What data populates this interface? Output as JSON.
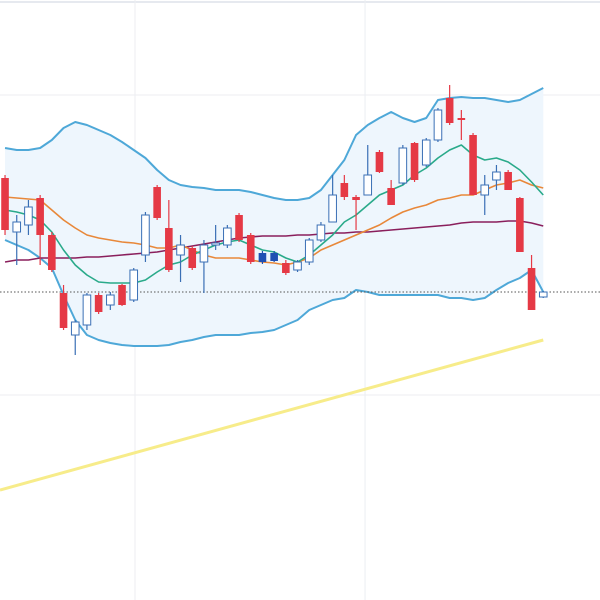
{
  "chart_data": {
    "type": "candlestick",
    "xlim": [
      -0.43,
      50.85
    ],
    "ylim": [
      0,
      600
    ],
    "xticks": [
      11.11,
      30.77
    ],
    "yticks": [
      205,
      505
    ],
    "grid": true,
    "x": [
      0,
      1,
      2,
      3,
      4,
      5,
      6,
      7,
      8,
      9,
      10,
      11,
      12,
      13,
      14,
      15,
      16,
      17,
      18,
      19,
      20,
      21,
      22,
      23,
      24,
      25,
      26,
      27,
      28,
      29,
      30,
      31,
      32,
      33,
      34,
      35,
      36,
      37,
      38,
      39,
      40,
      41,
      42,
      43,
      44,
      45,
      46
    ],
    "open": [
      422,
      368,
      375,
      402,
      365,
      307,
      265,
      275,
      305,
      295,
      315,
      300,
      345,
      413,
      372,
      345,
      352,
      338,
      355,
      355,
      385,
      365,
      347,
      347,
      337,
      330,
      338,
      360,
      378,
      417,
      403,
      405,
      448,
      412,
      417,
      457,
      435,
      460,
      502,
      482,
      465,
      405,
      420,
      428,
      402,
      332,
      303
    ],
    "high": [
      425,
      385,
      400,
      405,
      368,
      315,
      280,
      307,
      307,
      308,
      316,
      332,
      388,
      415,
      400,
      365,
      354,
      360,
      375,
      375,
      387,
      367,
      349,
      349,
      340,
      340,
      362,
      378,
      425,
      425,
      405,
      455,
      450,
      420,
      455,
      458,
      462,
      492,
      515,
      490,
      467,
      425,
      435,
      430,
      403,
      345,
      309
    ],
    "low": [
      365,
      335,
      365,
      335,
      328,
      270,
      245,
      270,
      286,
      290,
      294,
      298,
      338,
      380,
      328,
      318,
      330,
      307,
      350,
      352,
      358,
      336,
      336,
      338,
      325,
      328,
      335,
      358,
      378,
      400,
      370,
      405,
      427,
      395,
      415,
      418,
      433,
      458,
      475,
      460,
      405,
      385,
      410,
      410,
      348,
      290,
      302
    ],
    "close": [
      370,
      378,
      393,
      365,
      330,
      272,
      278,
      305,
      288,
      305,
      295,
      330,
      385,
      382,
      330,
      355,
      332,
      355,
      357,
      372,
      360,
      338,
      338,
      339,
      327,
      338,
      360,
      375,
      405,
      403,
      400,
      425,
      428,
      395,
      452,
      420,
      460,
      490,
      477,
      480,
      405,
      415,
      428,
      410,
      348,
      290,
      308
    ],
    "candle_colors": [
      "#e53945",
      "#ffffff",
      "#ffffff",
      "#e53945",
      "#e53945",
      "#e53945",
      "#ffffff",
      "#ffffff",
      "#e53945",
      "#ffffff",
      "#e53945",
      "#ffffff",
      "#ffffff",
      "#e53945",
      "#e53945",
      "#ffffff",
      "#e53945",
      "#ffffff",
      "#ffffff",
      "#ffffff",
      "#e53945",
      "#e53945",
      "#1f4fb3",
      "#1f4fb3",
      "#e53945",
      "#ffffff",
      "#ffffff",
      "#ffffff",
      "#ffffff",
      "#e53945",
      "#e53945",
      "#ffffff",
      "#e53945",
      "#e53945",
      "#ffffff",
      "#e53945",
      "#ffffff",
      "#ffffff",
      "#e53945",
      "#e53945",
      "#e53945",
      "#ffffff",
      "#ffffff",
      "#e53945",
      "#e53945",
      "#e53945",
      "#ffffff"
    ],
    "up_outline": "#3a6fb5",
    "band_fill": "#eef6fd",
    "band_upper": {
      "color": "#4ea8d8",
      "values": [
        452,
        450,
        450,
        452,
        460,
        472,
        478,
        475,
        470,
        465,
        458,
        450,
        442,
        430,
        420,
        415,
        413,
        412,
        410,
        410,
        410,
        408,
        405,
        402,
        400,
        400,
        402,
        410,
        425,
        440,
        465,
        475,
        482,
        488,
        482,
        478,
        482,
        500,
        502,
        503,
        502,
        502,
        500,
        498,
        500,
        506,
        512
      ]
    },
    "band_lower": {
      "color": "#4ea8d8",
      "values": [
        360,
        355,
        350,
        342,
        332,
        305,
        280,
        265,
        260,
        257,
        255,
        254,
        254,
        254,
        255,
        258,
        260,
        263,
        265,
        265,
        265,
        267,
        268,
        270,
        275,
        280,
        290,
        295,
        300,
        302,
        310,
        308,
        305,
        305,
        305,
        305,
        305,
        305,
        302,
        302,
        300,
        302,
        310,
        317,
        322,
        330,
        308
      ]
    },
    "overlays": [
      {
        "color": "#8a1f5c",
        "values": [
          338,
          340,
          340,
          342,
          342,
          342,
          342,
          343,
          343,
          344,
          345,
          346,
          347,
          348,
          350,
          352,
          354,
          356,
          358,
          360,
          362,
          363,
          364,
          364,
          364,
          365,
          365,
          366,
          367,
          367,
          368,
          368,
          369,
          370,
          371,
          372,
          373,
          374,
          375,
          377,
          378,
          378,
          378,
          379,
          379,
          377,
          374
        ]
      },
      {
        "color": "#e8883a",
        "values": [
          403,
          402,
          401,
          400,
          390,
          380,
          372,
          365,
          362,
          360,
          358,
          357,
          355,
          352,
          352,
          355,
          350,
          345,
          342,
          342,
          342,
          340,
          338,
          337,
          335,
          338,
          342,
          350,
          355,
          360,
          365,
          370,
          375,
          382,
          388,
          392,
          395,
          400,
          402,
          405,
          405,
          410,
          415,
          417,
          420,
          415,
          412
        ]
      },
      {
        "color": "#2aaa8a",
        "values": [
          390,
          388,
          385,
          380,
          368,
          350,
          335,
          325,
          318,
          317,
          317,
          317,
          320,
          328,
          335,
          338,
          345,
          350,
          355,
          358,
          360,
          355,
          350,
          348,
          342,
          338,
          345,
          355,
          365,
          378,
          385,
          395,
          405,
          410,
          415,
          425,
          432,
          442,
          450,
          455,
          445,
          440,
          442,
          438,
          430,
          418,
          405
        ]
      }
    ],
    "long_average": {
      "color": "#f7ec8a",
      "x": [
        -0.43,
        46
      ],
      "values": [
        110,
        260
      ]
    },
    "price_line": {
      "color": "#555555",
      "value": 308
    }
  }
}
